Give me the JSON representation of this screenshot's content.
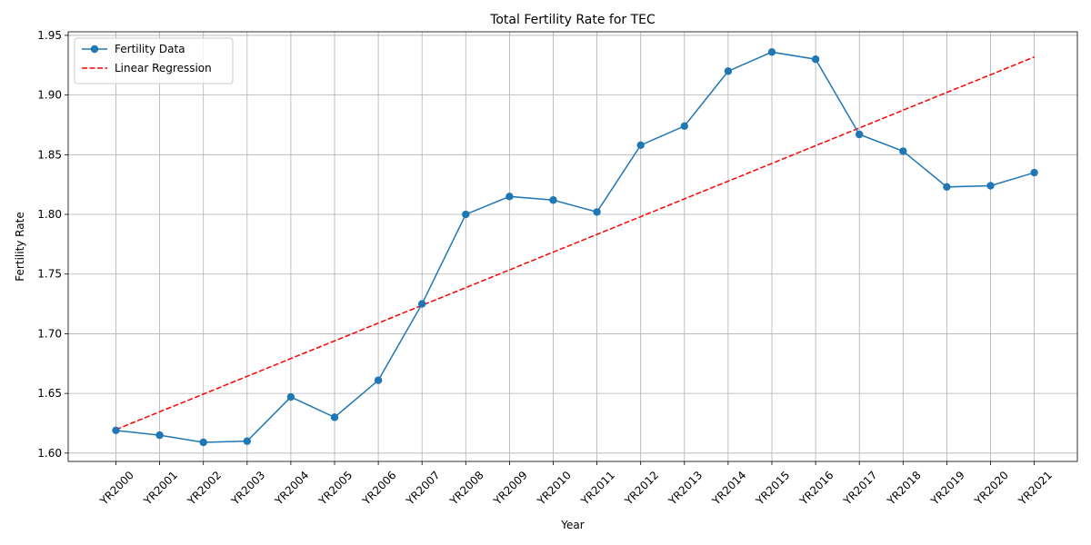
{
  "chart_data": {
    "type": "line",
    "title": "Total Fertility Rate for TEC",
    "xlabel": "Year",
    "ylabel": "Fertility Rate",
    "categories": [
      "YR2000",
      "YR2001",
      "YR2002",
      "YR2003",
      "YR2004",
      "YR2005",
      "YR2006",
      "YR2007",
      "YR2008",
      "YR2009",
      "YR2010",
      "YR2011",
      "YR2012",
      "YR2013",
      "YR2014",
      "YR2015",
      "YR2016",
      "YR2017",
      "YR2018",
      "YR2019",
      "YR2020",
      "YR2021"
    ],
    "y_ticks": [
      "1.60",
      "1.65",
      "1.70",
      "1.75",
      "1.80",
      "1.85",
      "1.90",
      "1.95"
    ],
    "ylim": [
      1.593,
      1.953
    ],
    "grid": true,
    "legend_position": "top-left",
    "series": [
      {
        "name": "Fertility Data",
        "style": "solid-line-with-circle-markers",
        "color": "#1f77b4",
        "values": [
          1.619,
          1.615,
          1.609,
          1.61,
          1.647,
          1.63,
          1.661,
          1.725,
          1.8,
          1.815,
          1.812,
          1.802,
          1.858,
          1.874,
          1.92,
          1.936,
          1.93,
          1.867,
          1.853,
          1.823,
          1.824,
          1.835
        ]
      },
      {
        "name": "Linear Regression",
        "style": "dashed-line",
        "color": "#ff0000",
        "values": [
          1.6197,
          1.6346,
          1.6494,
          1.6643,
          1.6792,
          1.694,
          1.7089,
          1.7238,
          1.7386,
          1.7535,
          1.7684,
          1.7832,
          1.7981,
          1.813,
          1.8278,
          1.8427,
          1.8576,
          1.8724,
          1.8873,
          1.9022,
          1.917,
          1.9319
        ]
      }
    ]
  }
}
